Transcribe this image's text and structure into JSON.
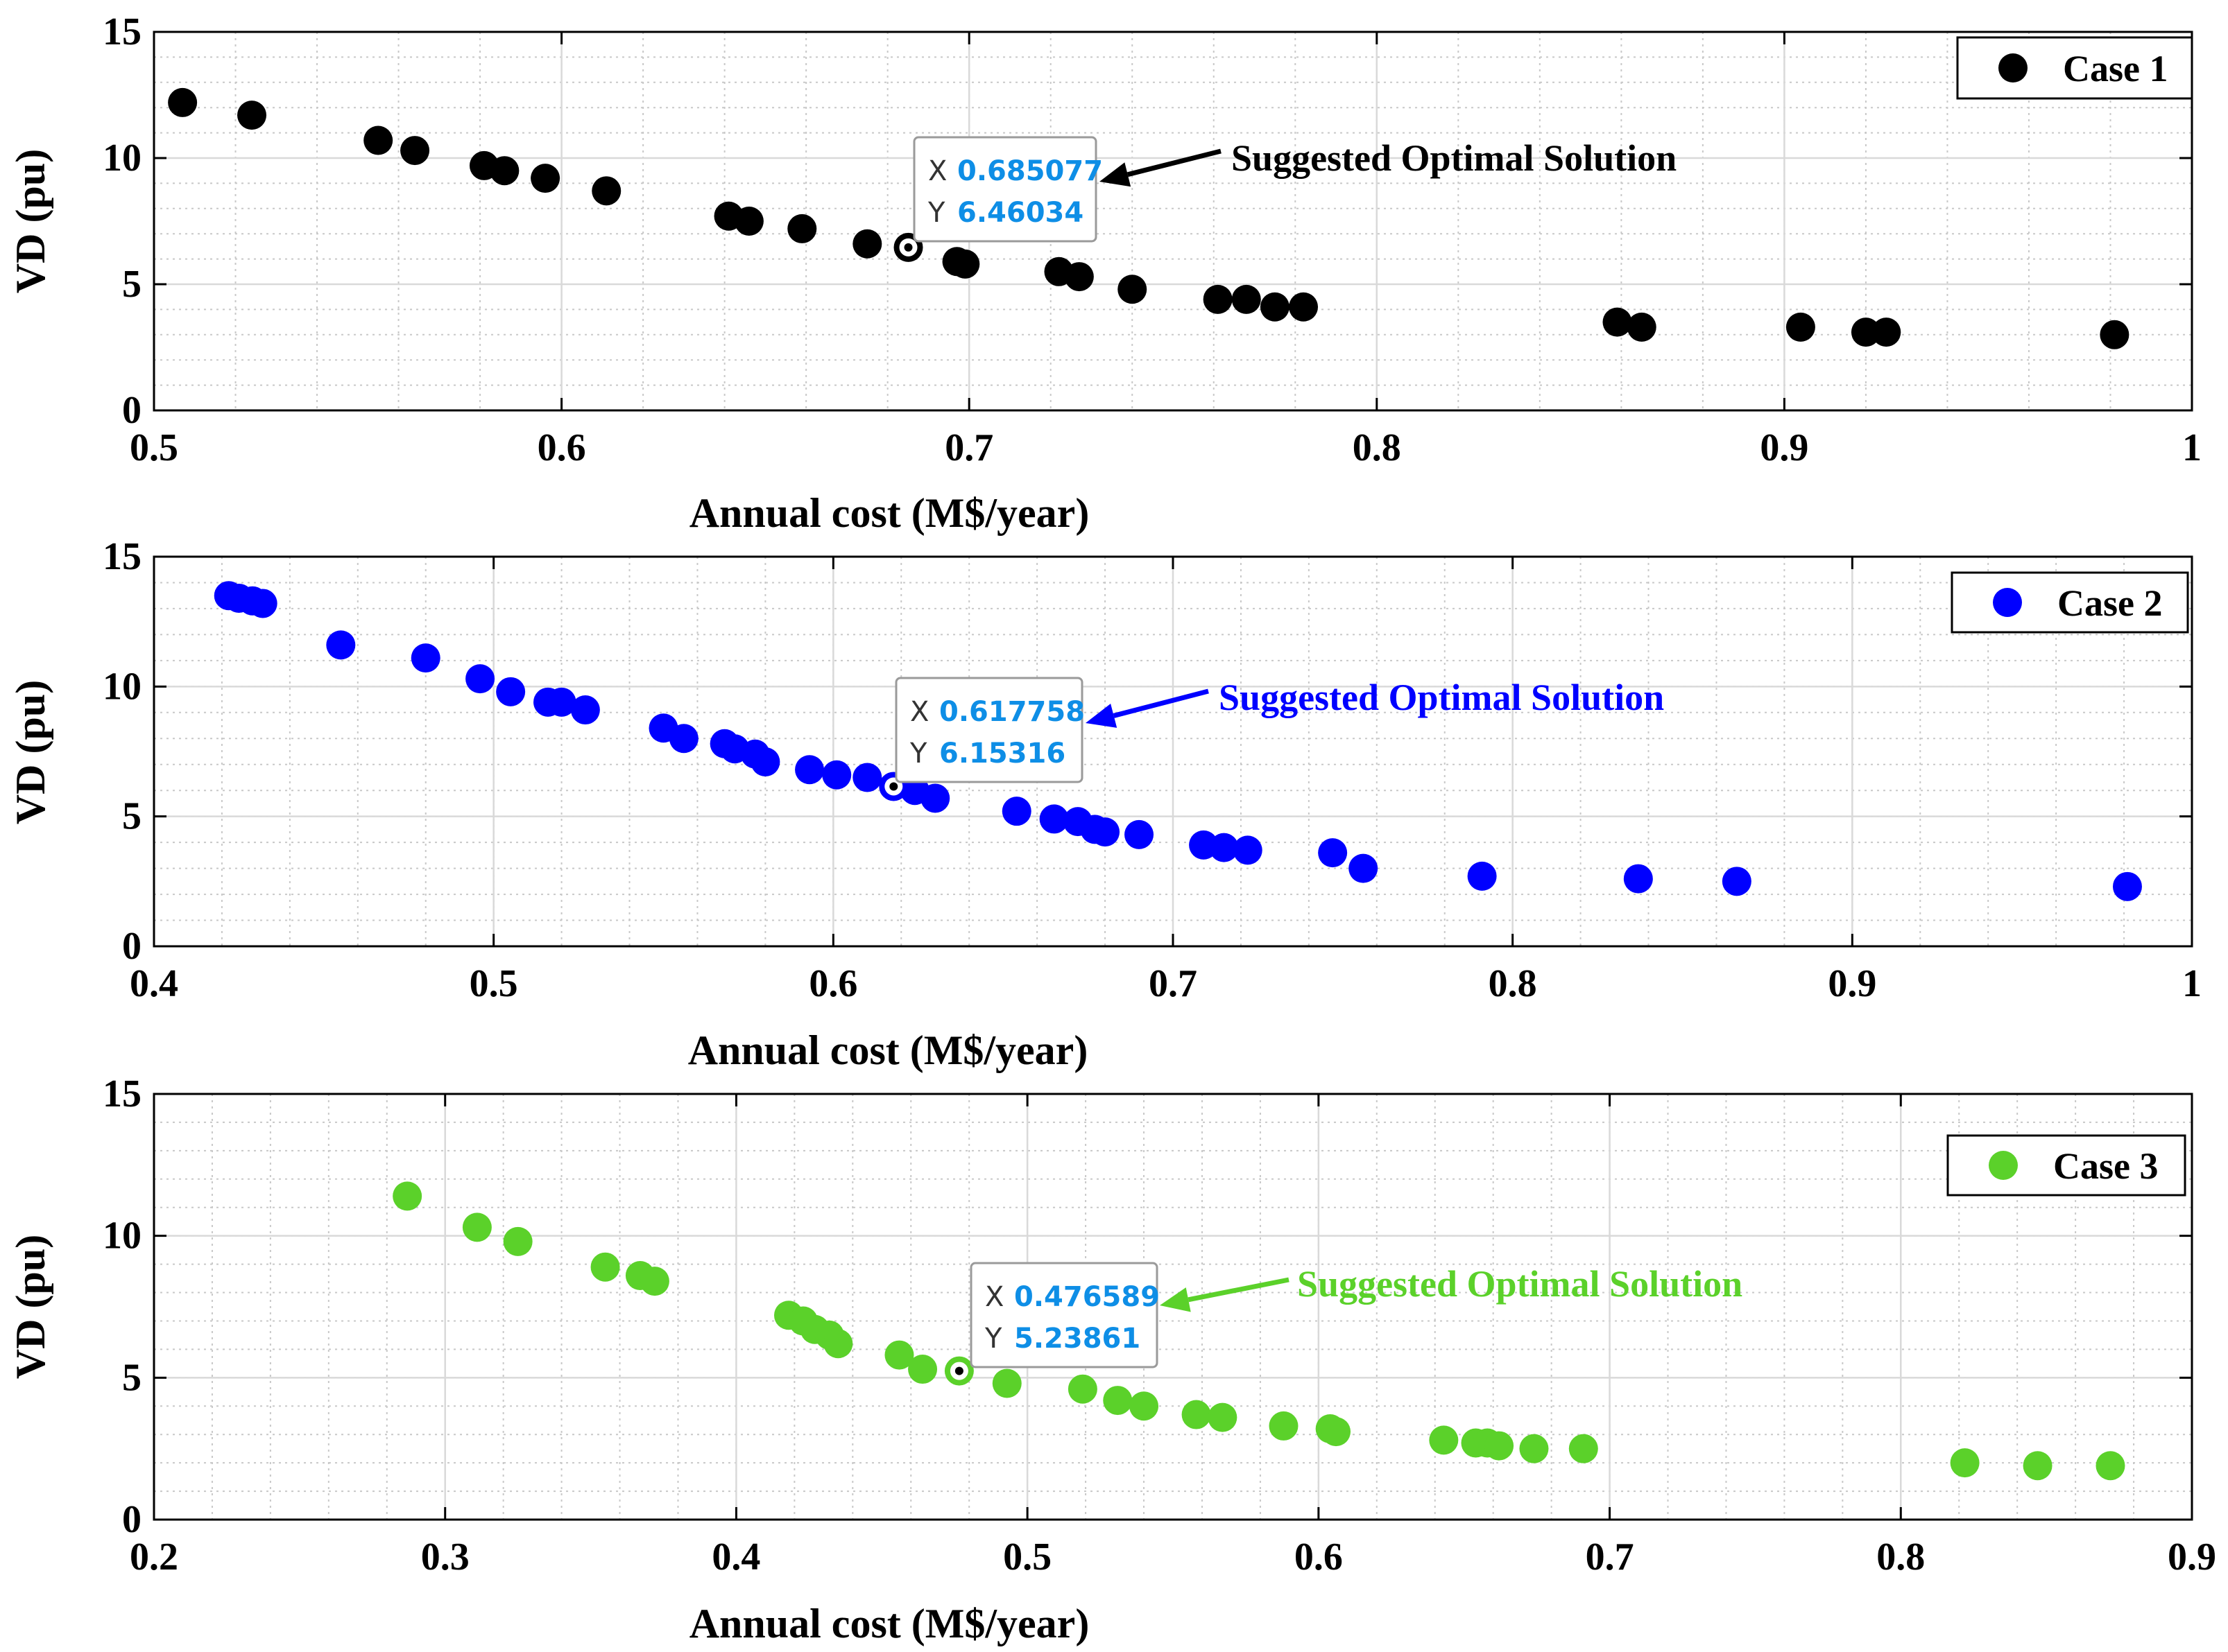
{
  "chart_data": [
    {
      "type": "scatter",
      "xlabel": "Annual cost (M$/year)",
      "ylabel": "VD (pu)",
      "xlim": [
        0.5,
        1
      ],
      "ylim": [
        0,
        15
      ],
      "xticks": [
        0.5,
        0.6,
        0.7,
        0.8,
        0.9,
        1
      ],
      "xtick_labels": [
        "0.5",
        "0.6",
        "0.7",
        "0.8",
        "0.9",
        "1"
      ],
      "yticks": [
        0,
        5,
        10,
        15
      ],
      "ytick_labels": [
        "0",
        "5",
        "10",
        "15"
      ],
      "grid": true,
      "legend": {
        "label": "Case 1",
        "position": "top-right"
      },
      "series": [
        {
          "name": "Case 1",
          "color": "#000000",
          "x": [
            0.507,
            0.524,
            0.555,
            0.564,
            0.581,
            0.586,
            0.596,
            0.611,
            0.641,
            0.646,
            0.659,
            0.675,
            0.697,
            0.699,
            0.722,
            0.727,
            0.74,
            0.761,
            0.768,
            0.775,
            0.782,
            0.859,
            0.865,
            0.904,
            0.92,
            0.925,
            0.981
          ],
          "y": [
            12.2,
            11.7,
            10.7,
            10.3,
            9.7,
            9.5,
            9.2,
            8.7,
            7.7,
            7.5,
            7.2,
            6.6,
            5.9,
            5.8,
            5.5,
            5.3,
            4.8,
            4.4,
            4.4,
            4.1,
            4.1,
            3.5,
            3.3,
            3.3,
            3.1,
            3.1,
            3.0
          ]
        }
      ],
      "optimal": {
        "x": 0.685077,
        "y": 6.46034
      },
      "datatip": {
        "x_key": "X",
        "x_value": "0.685077",
        "y_key": "Y",
        "y_value": "6.46034"
      },
      "annotation": {
        "text": "Suggested Optimal Solution",
        "color": "#000000"
      }
    },
    {
      "type": "scatter",
      "xlabel": "Annual cost (M$/year)",
      "ylabel": "VD (pu)",
      "xlim": [
        0.4,
        1
      ],
      "ylim": [
        0,
        15
      ],
      "xticks": [
        0.4,
        0.5,
        0.6,
        0.7,
        0.8,
        0.9,
        1
      ],
      "xtick_labels": [
        "0.4",
        "0.5",
        "0.6",
        "0.7",
        "0.8",
        "0.9",
        "1"
      ],
      "yticks": [
        0,
        5,
        10,
        15
      ],
      "ytick_labels": [
        "0",
        "5",
        "10",
        "15"
      ],
      "grid": true,
      "legend": {
        "label": "Case 2",
        "position": "top-right"
      },
      "series": [
        {
          "name": "Case 2",
          "color": "#0000ff",
          "x": [
            0.422,
            0.425,
            0.429,
            0.432,
            0.455,
            0.48,
            0.496,
            0.505,
            0.516,
            0.52,
            0.527,
            0.55,
            0.556,
            0.568,
            0.571,
            0.577,
            0.58,
            0.593,
            0.601,
            0.61,
            0.624,
            0.63,
            0.654,
            0.665,
            0.672,
            0.677,
            0.68,
            0.69,
            0.709,
            0.715,
            0.722,
            0.747,
            0.756,
            0.791,
            0.837,
            0.866,
            0.981
          ],
          "y": [
            13.5,
            13.4,
            13.3,
            13.2,
            11.6,
            11.1,
            10.3,
            9.8,
            9.4,
            9.4,
            9.1,
            8.4,
            8.0,
            7.8,
            7.6,
            7.4,
            7.1,
            6.8,
            6.6,
            6.5,
            6.0,
            5.7,
            5.2,
            4.9,
            4.8,
            4.5,
            4.4,
            4.3,
            3.9,
            3.8,
            3.7,
            3.6,
            3.0,
            2.7,
            2.6,
            2.5,
            2.3
          ]
        }
      ],
      "optimal": {
        "x": 0.617758,
        "y": 6.15316
      },
      "datatip": {
        "x_key": "X",
        "x_value": "0.617758",
        "y_key": "Y",
        "y_value": "6.15316"
      },
      "annotation": {
        "text": "Suggested Optimal Solution",
        "color": "#0000ff"
      }
    },
    {
      "type": "scatter",
      "xlabel": "Annual cost (M$/year)",
      "ylabel": "VD (pu)",
      "xlim": [
        0.2,
        0.9
      ],
      "ylim": [
        0,
        15
      ],
      "xticks": [
        0.2,
        0.3,
        0.4,
        0.5,
        0.6,
        0.7,
        0.8,
        0.9
      ],
      "xtick_labels": [
        "0.2",
        "0.3",
        "0.4",
        "0.5",
        "0.6",
        "0.7",
        "0.8",
        "0.9"
      ],
      "yticks": [
        0,
        5,
        10,
        15
      ],
      "ytick_labels": [
        "0",
        "5",
        "10",
        "15"
      ],
      "grid": true,
      "legend": {
        "label": "Case 3",
        "position": "top-right"
      },
      "series": [
        {
          "name": "Case 3",
          "color": "#5bd12a",
          "x": [
            0.287,
            0.311,
            0.325,
            0.355,
            0.367,
            0.372,
            0.418,
            0.423,
            0.427,
            0.432,
            0.435,
            0.456,
            0.464,
            0.493,
            0.519,
            0.531,
            0.54,
            0.558,
            0.567,
            0.588,
            0.604,
            0.606,
            0.643,
            0.654,
            0.658,
            0.662,
            0.674,
            0.691,
            0.822,
            0.847,
            0.872
          ],
          "y": [
            11.4,
            10.3,
            9.8,
            8.9,
            8.6,
            8.4,
            7.2,
            7.0,
            6.7,
            6.5,
            6.2,
            5.8,
            5.3,
            4.8,
            4.6,
            4.2,
            4.0,
            3.7,
            3.6,
            3.3,
            3.2,
            3.1,
            2.8,
            2.7,
            2.7,
            2.6,
            2.5,
            2.5,
            2.0,
            1.9,
            1.9
          ]
        }
      ],
      "optimal": {
        "x": 0.476589,
        "y": 5.23861
      },
      "datatip": {
        "x_key": "X",
        "x_value": "0.476589",
        "y_key": "Y",
        "y_value": "5.23861"
      },
      "annotation": {
        "text": "Suggested Optimal Solution",
        "color": "#5bd12a"
      }
    }
  ]
}
